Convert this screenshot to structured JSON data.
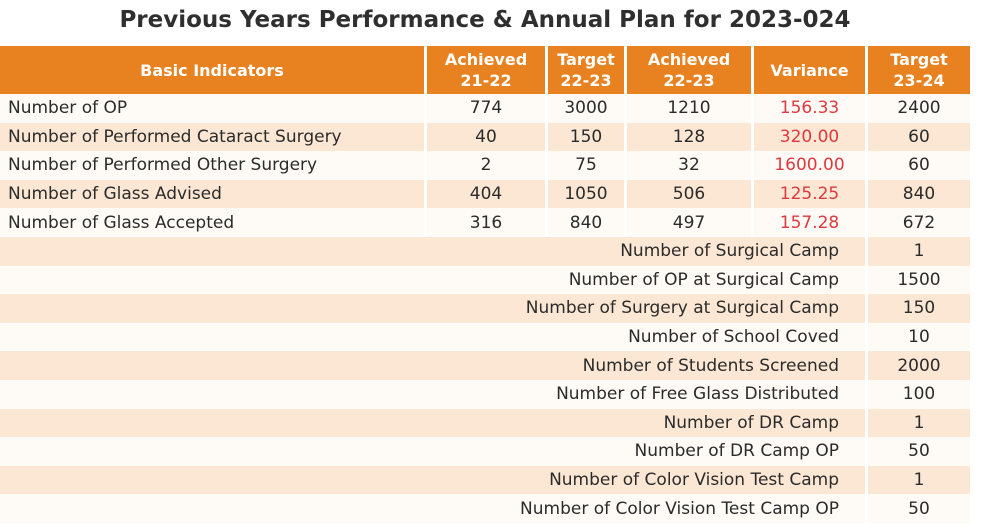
{
  "title": "Previous Years Performance & Annual Plan for 2023-024",
  "headers": {
    "indicator": "Basic Indicators",
    "achieved_21_22": [
      "Achieved",
      "21-22"
    ],
    "target_22_23": [
      "Target",
      "22-23"
    ],
    "achieved_22_23": [
      "Achieved",
      "22-23"
    ],
    "variance": "Variance",
    "target_23_24": [
      "Target",
      "23-24"
    ]
  },
  "performance_rows": [
    {
      "indicator": "Number of OP",
      "achieved_21_22": "774",
      "target_22_23": "3000",
      "achieved_22_23": "1210",
      "variance": "156.33",
      "target_23_24": "2400"
    },
    {
      "indicator": "Number of Performed Cataract Surgery",
      "achieved_21_22": "40",
      "target_22_23": "150",
      "achieved_22_23": "128",
      "variance": "320.00",
      "target_23_24": "60"
    },
    {
      "indicator": "Number of Performed Other Surgery",
      "achieved_21_22": "2",
      "target_22_23": "75",
      "achieved_22_23": "32",
      "variance": "1600.00",
      "target_23_24": "60"
    },
    {
      "indicator": "Number of Glass Advised",
      "achieved_21_22": "404",
      "target_22_23": "1050",
      "achieved_22_23": "506",
      "variance": "125.25",
      "target_23_24": "840"
    },
    {
      "indicator": "Number of Glass Accepted",
      "achieved_21_22": "316",
      "target_22_23": "840",
      "achieved_22_23": "497",
      "variance": "157.28",
      "target_23_24": "672"
    }
  ],
  "plan_rows": [
    {
      "label": "Number of Surgical Camp",
      "target_23_24": "1"
    },
    {
      "label": "Number of OP at Surgical Camp",
      "target_23_24": "1500"
    },
    {
      "label": "Number of Surgery at Surgical Camp",
      "target_23_24": "150"
    },
    {
      "label": "Number of School Coved",
      "target_23_24": "10"
    },
    {
      "label": "Number of Students Screened",
      "target_23_24": "2000"
    },
    {
      "label": "Number of Free Glass Distributed",
      "target_23_24": "100"
    },
    {
      "label": "Number of DR Camp",
      "target_23_24": "1"
    },
    {
      "label": "Number of DR Camp OP",
      "target_23_24": "50"
    },
    {
      "label": "Number of Color Vision Test Camp",
      "target_23_24": "1"
    },
    {
      "label": "Number of Color Vision Test Camp OP",
      "target_23_24": "50"
    }
  ],
  "colors": {
    "header_bg": "#e8811f",
    "variance_text": "#e0383e",
    "row_light": "#fefaf6",
    "row_dark": "#fbe7d3"
  }
}
